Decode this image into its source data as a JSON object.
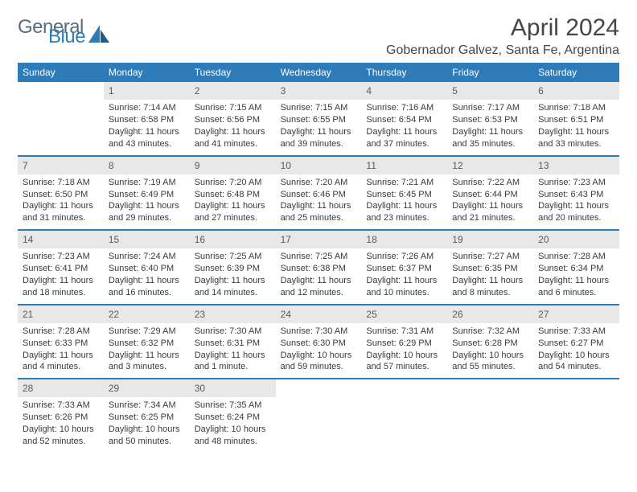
{
  "logo": {
    "word1": "General",
    "word2": "Blue"
  },
  "title": "April 2024",
  "subtitle": "Gobernador Galvez, Santa Fe, Argentina",
  "colors": {
    "brand_blue": "#2d7bb9",
    "brand_gray": "#5a6b7a",
    "header_bg": "#2d7bb9",
    "header_text": "#ffffff",
    "daynum_bg": "#e8e8e8",
    "daynum_text": "#5a5a5a",
    "body_text": "#3a3a3a",
    "title_text": "#454545",
    "page_bg": "#ffffff"
  },
  "weekdays": [
    "Sunday",
    "Monday",
    "Tuesday",
    "Wednesday",
    "Thursday",
    "Friday",
    "Saturday"
  ],
  "weeks": [
    [
      null,
      {
        "n": "1",
        "sr": "Sunrise: 7:14 AM",
        "ss": "Sunset: 6:58 PM",
        "dl": "Daylight: 11 hours and 43 minutes."
      },
      {
        "n": "2",
        "sr": "Sunrise: 7:15 AM",
        "ss": "Sunset: 6:56 PM",
        "dl": "Daylight: 11 hours and 41 minutes."
      },
      {
        "n": "3",
        "sr": "Sunrise: 7:15 AM",
        "ss": "Sunset: 6:55 PM",
        "dl": "Daylight: 11 hours and 39 minutes."
      },
      {
        "n": "4",
        "sr": "Sunrise: 7:16 AM",
        "ss": "Sunset: 6:54 PM",
        "dl": "Daylight: 11 hours and 37 minutes."
      },
      {
        "n": "5",
        "sr": "Sunrise: 7:17 AM",
        "ss": "Sunset: 6:53 PM",
        "dl": "Daylight: 11 hours and 35 minutes."
      },
      {
        "n": "6",
        "sr": "Sunrise: 7:18 AM",
        "ss": "Sunset: 6:51 PM",
        "dl": "Daylight: 11 hours and 33 minutes."
      }
    ],
    [
      {
        "n": "7",
        "sr": "Sunrise: 7:18 AM",
        "ss": "Sunset: 6:50 PM",
        "dl": "Daylight: 11 hours and 31 minutes."
      },
      {
        "n": "8",
        "sr": "Sunrise: 7:19 AM",
        "ss": "Sunset: 6:49 PM",
        "dl": "Daylight: 11 hours and 29 minutes."
      },
      {
        "n": "9",
        "sr": "Sunrise: 7:20 AM",
        "ss": "Sunset: 6:48 PM",
        "dl": "Daylight: 11 hours and 27 minutes."
      },
      {
        "n": "10",
        "sr": "Sunrise: 7:20 AM",
        "ss": "Sunset: 6:46 PM",
        "dl": "Daylight: 11 hours and 25 minutes."
      },
      {
        "n": "11",
        "sr": "Sunrise: 7:21 AM",
        "ss": "Sunset: 6:45 PM",
        "dl": "Daylight: 11 hours and 23 minutes."
      },
      {
        "n": "12",
        "sr": "Sunrise: 7:22 AM",
        "ss": "Sunset: 6:44 PM",
        "dl": "Daylight: 11 hours and 21 minutes."
      },
      {
        "n": "13",
        "sr": "Sunrise: 7:23 AM",
        "ss": "Sunset: 6:43 PM",
        "dl": "Daylight: 11 hours and 20 minutes."
      }
    ],
    [
      {
        "n": "14",
        "sr": "Sunrise: 7:23 AM",
        "ss": "Sunset: 6:41 PM",
        "dl": "Daylight: 11 hours and 18 minutes."
      },
      {
        "n": "15",
        "sr": "Sunrise: 7:24 AM",
        "ss": "Sunset: 6:40 PM",
        "dl": "Daylight: 11 hours and 16 minutes."
      },
      {
        "n": "16",
        "sr": "Sunrise: 7:25 AM",
        "ss": "Sunset: 6:39 PM",
        "dl": "Daylight: 11 hours and 14 minutes."
      },
      {
        "n": "17",
        "sr": "Sunrise: 7:25 AM",
        "ss": "Sunset: 6:38 PM",
        "dl": "Daylight: 11 hours and 12 minutes."
      },
      {
        "n": "18",
        "sr": "Sunrise: 7:26 AM",
        "ss": "Sunset: 6:37 PM",
        "dl": "Daylight: 11 hours and 10 minutes."
      },
      {
        "n": "19",
        "sr": "Sunrise: 7:27 AM",
        "ss": "Sunset: 6:35 PM",
        "dl": "Daylight: 11 hours and 8 minutes."
      },
      {
        "n": "20",
        "sr": "Sunrise: 7:28 AM",
        "ss": "Sunset: 6:34 PM",
        "dl": "Daylight: 11 hours and 6 minutes."
      }
    ],
    [
      {
        "n": "21",
        "sr": "Sunrise: 7:28 AM",
        "ss": "Sunset: 6:33 PM",
        "dl": "Daylight: 11 hours and 4 minutes."
      },
      {
        "n": "22",
        "sr": "Sunrise: 7:29 AM",
        "ss": "Sunset: 6:32 PM",
        "dl": "Daylight: 11 hours and 3 minutes."
      },
      {
        "n": "23",
        "sr": "Sunrise: 7:30 AM",
        "ss": "Sunset: 6:31 PM",
        "dl": "Daylight: 11 hours and 1 minute."
      },
      {
        "n": "24",
        "sr": "Sunrise: 7:30 AM",
        "ss": "Sunset: 6:30 PM",
        "dl": "Daylight: 10 hours and 59 minutes."
      },
      {
        "n": "25",
        "sr": "Sunrise: 7:31 AM",
        "ss": "Sunset: 6:29 PM",
        "dl": "Daylight: 10 hours and 57 minutes."
      },
      {
        "n": "26",
        "sr": "Sunrise: 7:32 AM",
        "ss": "Sunset: 6:28 PM",
        "dl": "Daylight: 10 hours and 55 minutes."
      },
      {
        "n": "27",
        "sr": "Sunrise: 7:33 AM",
        "ss": "Sunset: 6:27 PM",
        "dl": "Daylight: 10 hours and 54 minutes."
      }
    ],
    [
      {
        "n": "28",
        "sr": "Sunrise: 7:33 AM",
        "ss": "Sunset: 6:26 PM",
        "dl": "Daylight: 10 hours and 52 minutes."
      },
      {
        "n": "29",
        "sr": "Sunrise: 7:34 AM",
        "ss": "Sunset: 6:25 PM",
        "dl": "Daylight: 10 hours and 50 minutes."
      },
      {
        "n": "30",
        "sr": "Sunrise: 7:35 AM",
        "ss": "Sunset: 6:24 PM",
        "dl": "Daylight: 10 hours and 48 minutes."
      },
      null,
      null,
      null,
      null
    ]
  ]
}
